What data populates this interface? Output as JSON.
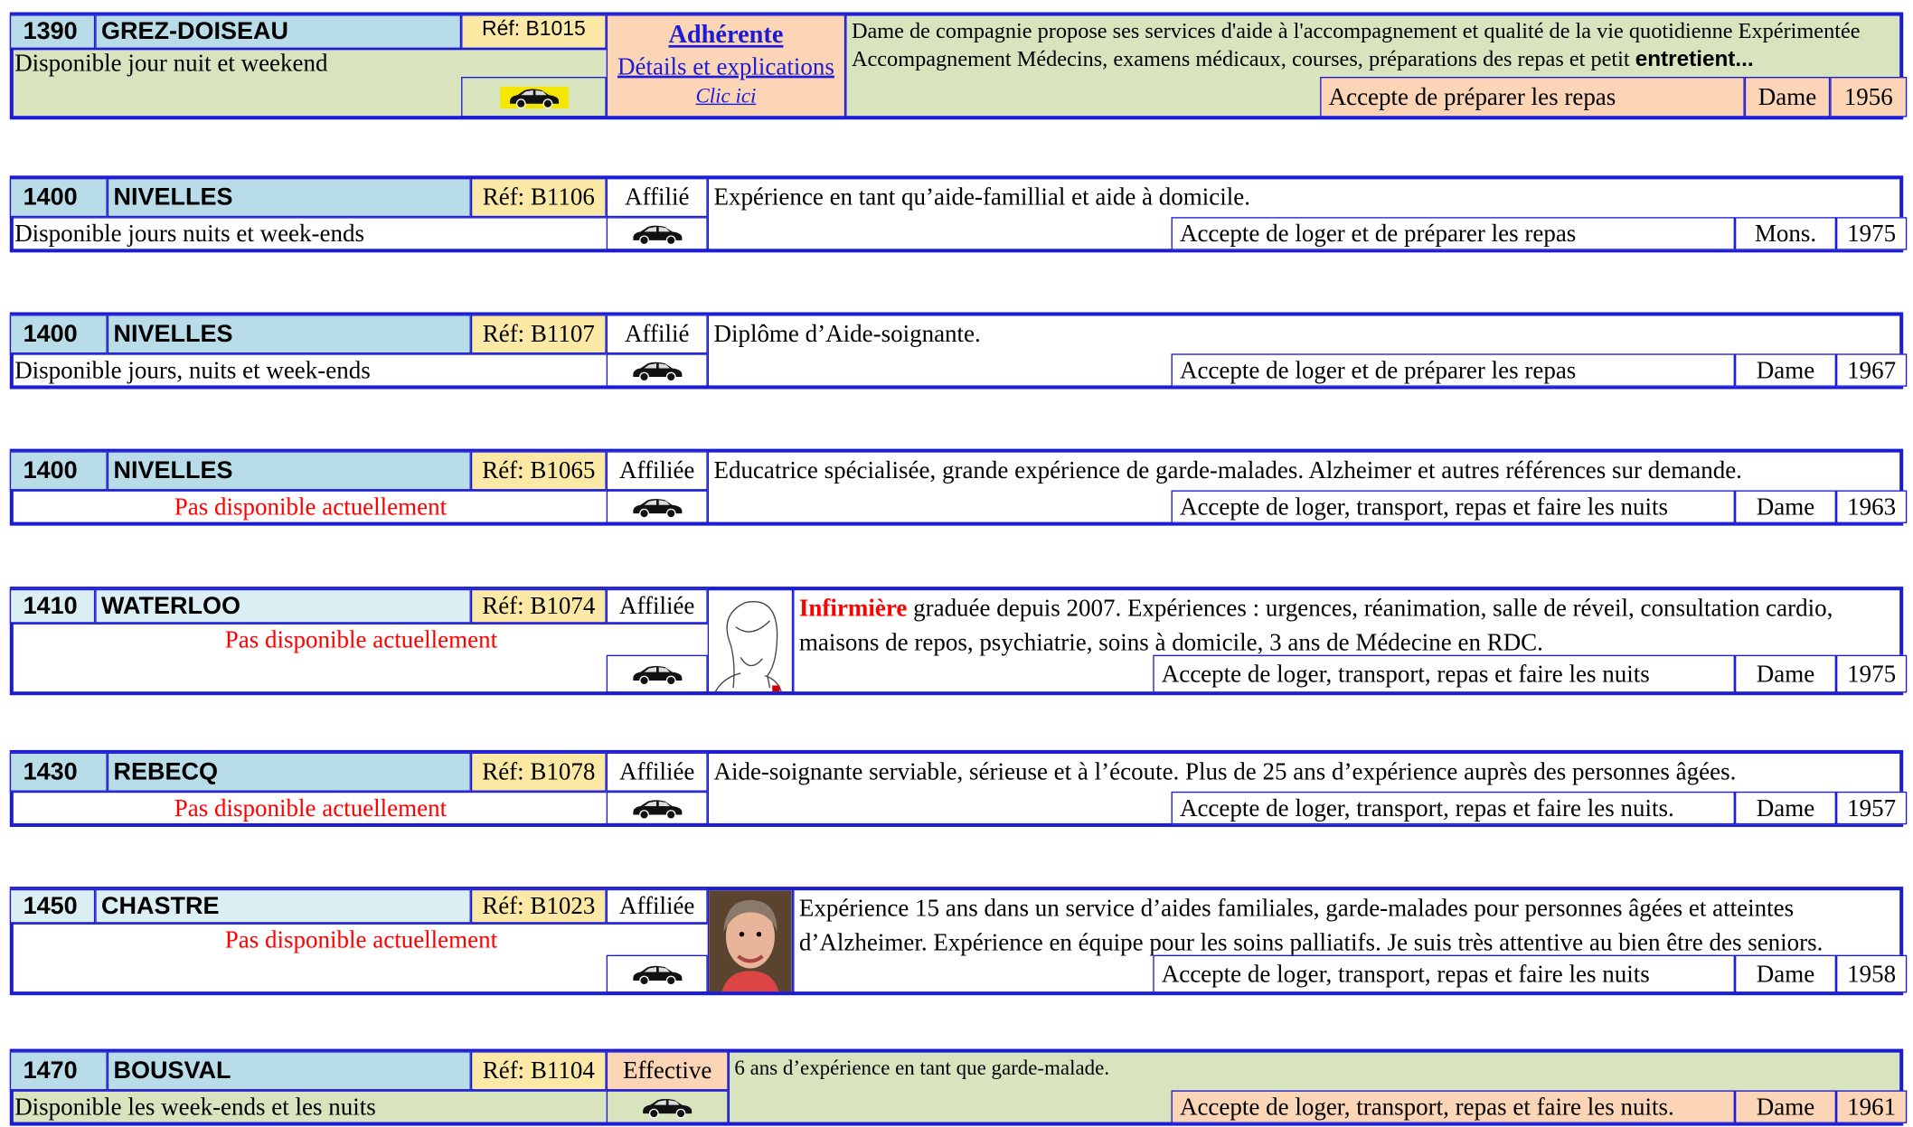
{
  "entries": [
    {
      "postcode": "1390",
      "city": "GREZ-DOISEAU",
      "ref": "Réf: B1015",
      "status": "Adhérente",
      "details": "Détails et explications",
      "link": "Clic ici",
      "availability": "Disponible jour nuit et weekend",
      "description": "Dame de compagnie propose ses services d'aide à l'accompagnement et qualité de la vie quotidienne   Expérimentée  Accompagnement Médecins, examens médicaux, courses, préparations des repas et petit ",
      "description_bold": "entretient...",
      "accept": "Accepte de préparer les repas",
      "gender": "Dame",
      "year": "1956"
    },
    {
      "postcode": "1400",
      "city": "NIVELLES",
      "ref": "Réf: B1106",
      "status": "Affilié",
      "availability": "Disponible jours nuits et week-ends",
      "description": "Expérience en tant qu’aide-famillial et aide à domicile.",
      "accept": "Accepte de loger et de préparer les repas",
      "gender": "Mons.",
      "year": "1975"
    },
    {
      "postcode": "1400",
      "city": "NIVELLES",
      "ref": "Réf: B1107",
      "status": "Affilié",
      "availability": "Disponible jours, nuits et week-ends",
      "description": "Diplôme d’Aide-soignante.",
      "accept": "Accepte de loger et de préparer les repas",
      "gender": "Dame",
      "year": "1967"
    },
    {
      "postcode": "1400",
      "city": "NIVELLES",
      "ref": "Réf: B1065",
      "status": "Affiliée",
      "availability": "Pas disponible actuellement",
      "availability_color": "#ff0000",
      "description": "Educatrice spécialisée, grande expérience de garde-malades. Alzheimer et autres références sur demande.",
      "accept": "Accepte de loger, transport, repas et faire les nuits",
      "gender": "Dame",
      "year": "1963"
    },
    {
      "postcode": "1410",
      "city": "WATERLOO",
      "ref": "Réf: B1074",
      "status": "Affiliée",
      "availability": "Pas disponible actuellement",
      "availability_color": "#ff0000",
      "highlight": "Infirmière",
      "description": " graduée depuis 2007. Expériences : urgences, réanimation, salle de réveil, consultation cardio, maisons de repos, psychiatrie, soins à domicile, 3 ans de Médecine en RDC.",
      "accept": "Accepte de loger, transport, repas et faire les nuits",
      "gender": "Dame",
      "year": "1975"
    },
    {
      "postcode": "1430",
      "city": "REBECQ",
      "ref": "Réf: B1078",
      "status": "Affiliée",
      "availability": "Pas disponible actuellement",
      "availability_color": "#ff0000",
      "description": "Aide-soignante serviable, sérieuse et à l’écoute. Plus de 25 ans d’expérience auprès des personnes âgées.",
      "accept": "Accepte de loger, transport, repas et faire les nuits.",
      "gender": "Dame",
      "year": "1957"
    },
    {
      "postcode": "1450",
      "city": "CHASTRE",
      "ref": "Réf: B1023",
      "status": "Affiliée",
      "availability": "Pas disponible actuellement",
      "availability_color": "#ff0000",
      "description": "Expérience 15 ans dans un service d’aides familiales, garde-malades pour personnes âgées et atteintes d’Alzheimer. Expérience en équipe pour les soins palliatifs. Je suis très attentive au bien être des seniors.",
      "accept": "Accepte de loger, transport, repas et faire les nuits",
      "gender": "Dame",
      "year": "1958"
    },
    {
      "postcode": "1470",
      "city": "BOUSVAL",
      "ref": "Réf: B1104",
      "status": "Effective",
      "availability": "Disponible les week-ends et les nuits",
      "description": "6 ans d’expérience en tant que garde-malade.",
      "accept": "Accepte de loger, transport, repas et faire les nuits.",
      "gender": "Dame",
      "year": "1961"
    }
  ]
}
